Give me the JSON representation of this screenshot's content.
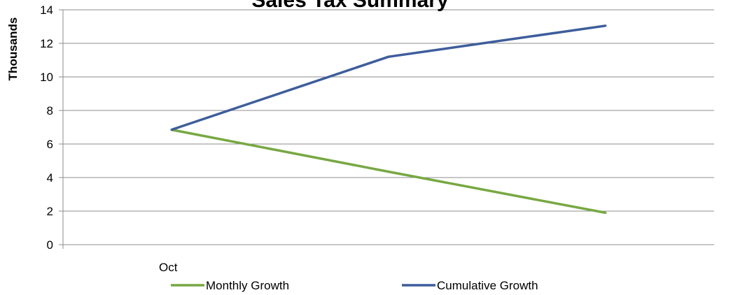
{
  "chart_data": {
    "type": "line",
    "title": "Sales Tax Summary",
    "ylabel": "Thousands",
    "xlabel": "",
    "categories": [
      "Oct",
      "",
      ""
    ],
    "ylim": [
      0,
      14
    ],
    "yticks": [
      0,
      2,
      4,
      6,
      8,
      10,
      12,
      14
    ],
    "grid": true,
    "legend": "bottom",
    "series": [
      {
        "name": "Monthly Growth",
        "color": "#77a843",
        "values": [
          6.85,
          4.35,
          1.9
        ]
      },
      {
        "name": "Cumulative Growth",
        "color": "#3e5d9c",
        "values": [
          6.85,
          11.2,
          13.05
        ]
      }
    ]
  }
}
